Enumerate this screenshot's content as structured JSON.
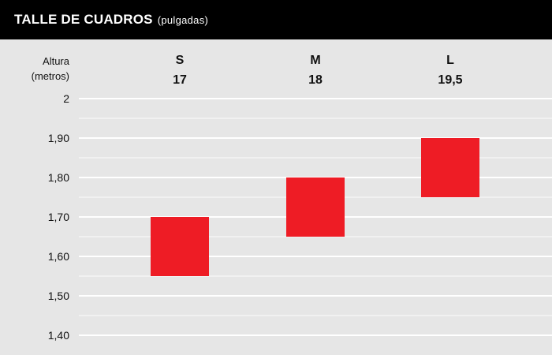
{
  "header": {
    "title": "TALLE DE CUADROS",
    "subtitle": "(pulgadas)"
  },
  "colors": {
    "header_bg": "#000000",
    "background": "#e6e6e6",
    "gridline": "#ffffff",
    "bar": "#ee1c25"
  },
  "chart_data": {
    "type": "bar",
    "title": "TALLE DE CUADROS (pulgadas)",
    "ylabel": "Altura (metros)",
    "ylabel_lines": [
      "Altura",
      "(metros)"
    ],
    "ylim": [
      1.4,
      2.0
    ],
    "yticks": [
      {
        "value": 2.0,
        "label": "2"
      },
      {
        "value": 1.9,
        "label": "1,90"
      },
      {
        "value": 1.8,
        "label": "1,80"
      },
      {
        "value": 1.7,
        "label": "1,70"
      },
      {
        "value": 1.6,
        "label": "1,60"
      },
      {
        "value": 1.5,
        "label": "1,50"
      },
      {
        "value": 1.4,
        "label": "1,40"
      }
    ],
    "minor_gridlines": [
      1.95,
      1.85,
      1.75,
      1.65,
      1.55,
      1.45
    ],
    "categories": [
      {
        "size": "S",
        "frame": "17",
        "low": 1.55,
        "high": 1.7
      },
      {
        "size": "M",
        "frame": "18",
        "low": 1.65,
        "high": 1.8
      },
      {
        "size": "L",
        "frame": "19,5",
        "low": 1.75,
        "high": 1.9
      }
    ],
    "grid": true
  }
}
